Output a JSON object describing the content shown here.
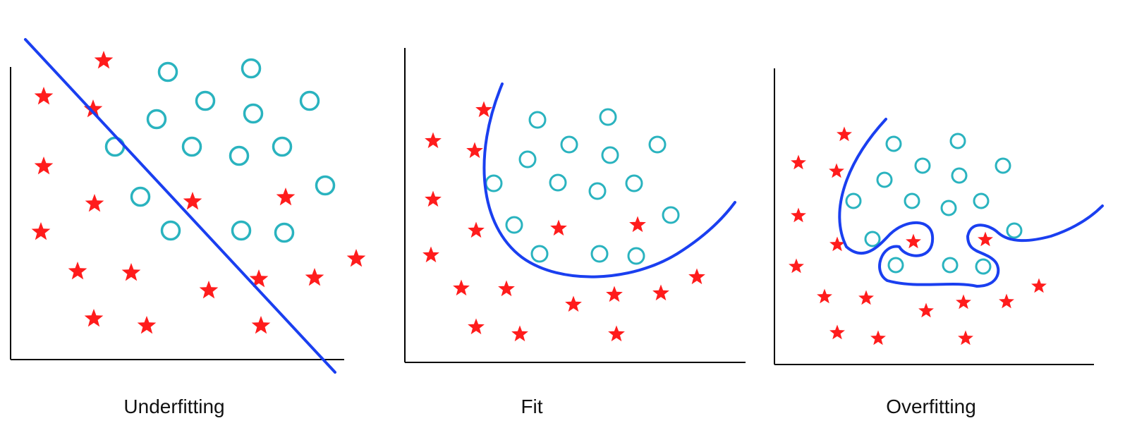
{
  "colors": {
    "star": "#ff1c1c",
    "circle": "#2ab3bf",
    "boundary": "#1a3ff0",
    "axis": "#000000",
    "label": "#111111"
  },
  "icons": {
    "class_a": "red-star-icon",
    "class_b": "teal-circle-icon"
  },
  "panels": [
    {
      "id": "underfitting",
      "label": "Underfitting",
      "boundary_shape": "straight-line"
    },
    {
      "id": "fit",
      "label": "Fit",
      "boundary_shape": "smooth-curve"
    },
    {
      "id": "overfitting",
      "label": "Overfitting",
      "boundary_shape": "wiggly-curve"
    }
  ]
}
